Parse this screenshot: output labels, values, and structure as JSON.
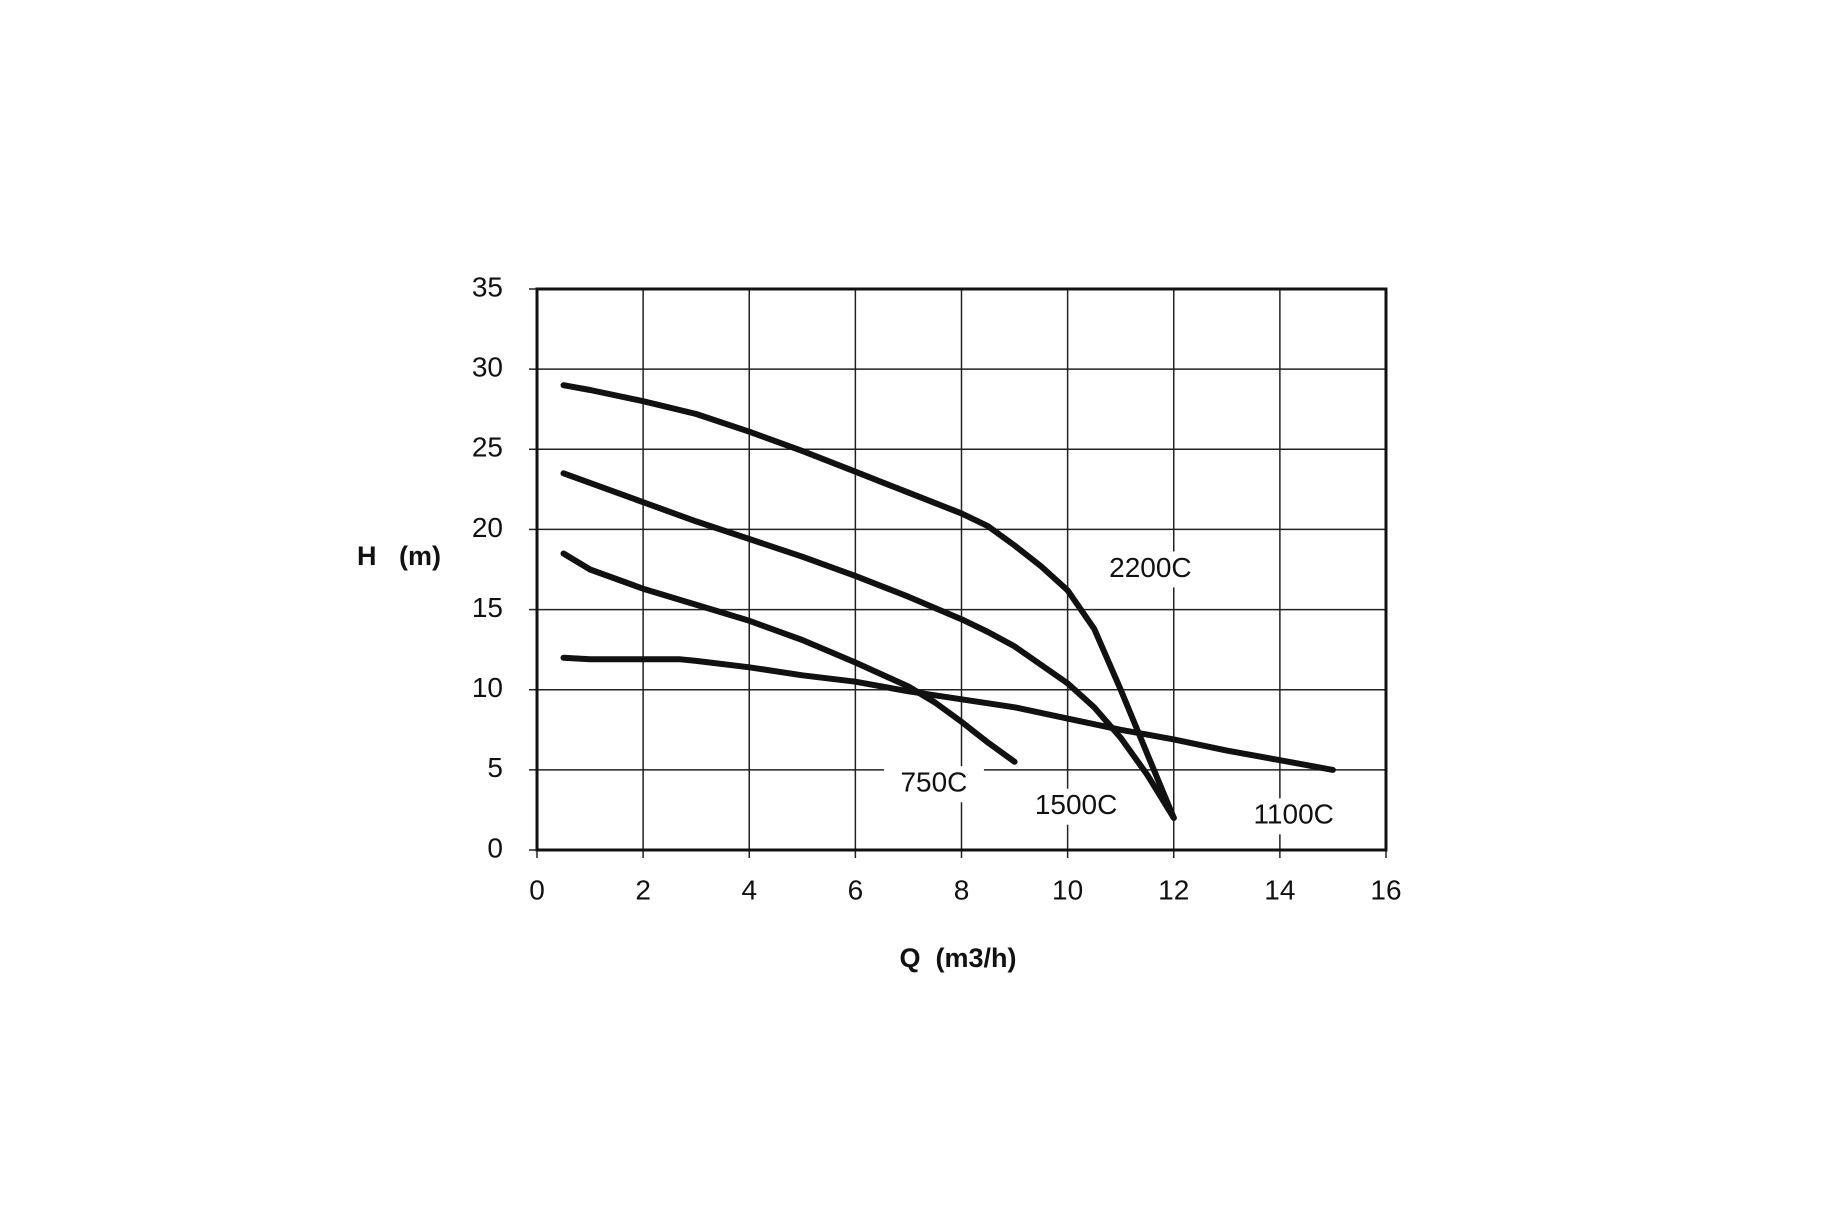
{
  "chart_data": {
    "type": "line",
    "xlabel": "Q  (m3/h)",
    "ylabel": "H   (m)",
    "xlim": [
      0,
      16
    ],
    "xticks": [
      0,
      2,
      4,
      6,
      8,
      10,
      12,
      14,
      16
    ],
    "ylim": [
      0,
      35
    ],
    "yticks": [
      0,
      5,
      10,
      15,
      20,
      25,
      30,
      35
    ],
    "grid": true,
    "series": [
      {
        "name": "2200C",
        "color": "#111111",
        "x": [
          0.5,
          1,
          2,
          3,
          4,
          5,
          6,
          7,
          8,
          8.5,
          9,
          9.5,
          10,
          10.5,
          11,
          11.5,
          12
        ],
        "values": [
          29,
          28.7,
          28,
          27.2,
          26.1,
          24.9,
          23.6,
          22.3,
          21,
          20.2,
          19,
          17.7,
          16.2,
          13.8,
          10,
          6,
          2
        ]
      },
      {
        "name": "1500C",
        "color": "#111111",
        "x": [
          0.5,
          1,
          2,
          3,
          4,
          5,
          6,
          7,
          8,
          8.5,
          9,
          10,
          10.5,
          11,
          11.5,
          12
        ],
        "values": [
          23.5,
          22.9,
          21.7,
          20.5,
          19.4,
          18.3,
          17.1,
          15.8,
          14.4,
          13.6,
          12.7,
          10.4,
          8.9,
          7,
          4.7,
          2
        ]
      },
      {
        "name": "750C",
        "color": "#111111",
        "x": [
          0.5,
          1,
          2,
          3,
          4,
          5,
          6,
          7,
          7.5,
          8,
          8.5,
          9
        ],
        "values": [
          18.5,
          17.5,
          16.3,
          15.3,
          14.3,
          13.1,
          11.7,
          10.2,
          9.2,
          8,
          6.7,
          5.5
        ]
      },
      {
        "name": "1100C",
        "color": "#111111",
        "x": [
          0.5,
          1,
          2,
          2.7,
          3,
          4,
          5,
          6,
          7,
          8,
          9,
          10,
          11,
          12,
          13,
          14,
          15
        ],
        "values": [
          12,
          11.9,
          11.9,
          11.9,
          11.8,
          11.4,
          10.9,
          10.5,
          9.9,
          9.4,
          8.9,
          8.2,
          7.5,
          6.9,
          6.2,
          5.6,
          5
        ]
      }
    ]
  }
}
